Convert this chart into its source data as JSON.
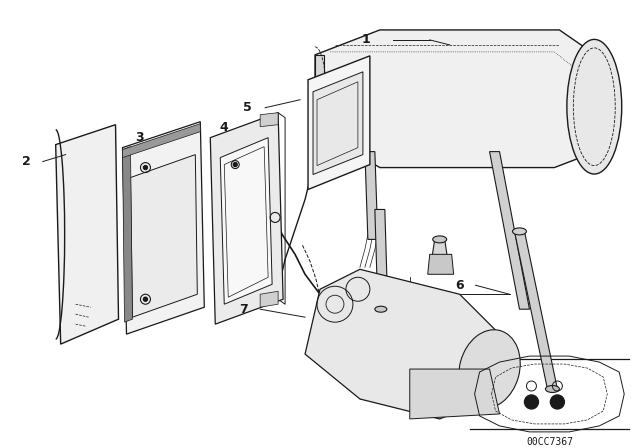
{
  "bg_color": "#ffffff",
  "line_color": "#1a1a1a",
  "diagram_code": "00CC7367",
  "fig_width": 6.4,
  "fig_height": 4.48,
  "dpi": 100
}
